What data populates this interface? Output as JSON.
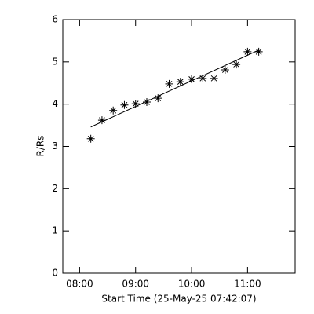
{
  "chart_data": {
    "type": "scatter",
    "xlabel": "Start Time (25-May-25 07:42:07)",
    "ylabel": "R/Rs",
    "xlim": [
      "07:42",
      "11:51"
    ],
    "xticks": [
      "08:00",
      "09:00",
      "10:00",
      "11:00"
    ],
    "ylim": [
      0,
      6
    ],
    "yticks": [
      0,
      1,
      2,
      3,
      4,
      5,
      6
    ],
    "color": "#000000",
    "series": [
      {
        "x": [
          "08:12",
          "08:24",
          "08:36",
          "08:48",
          "09:00",
          "09:12",
          "09:24",
          "09:36",
          "09:48",
          "10:00",
          "10:12",
          "10:24",
          "10:36",
          "10:48",
          "11:00",
          "11:12"
        ],
        "values": [
          3.18,
          3.62,
          3.85,
          3.98,
          4.01,
          4.05,
          4.14,
          4.48,
          4.53,
          4.59,
          4.61,
          4.61,
          4.81,
          4.94,
          5.24,
          5.24
        ],
        "marker": "asterisk"
      },
      {
        "x": [
          "08:12",
          "11:12"
        ],
        "values": [
          3.46,
          5.28
        ],
        "marker": "line"
      }
    ]
  }
}
